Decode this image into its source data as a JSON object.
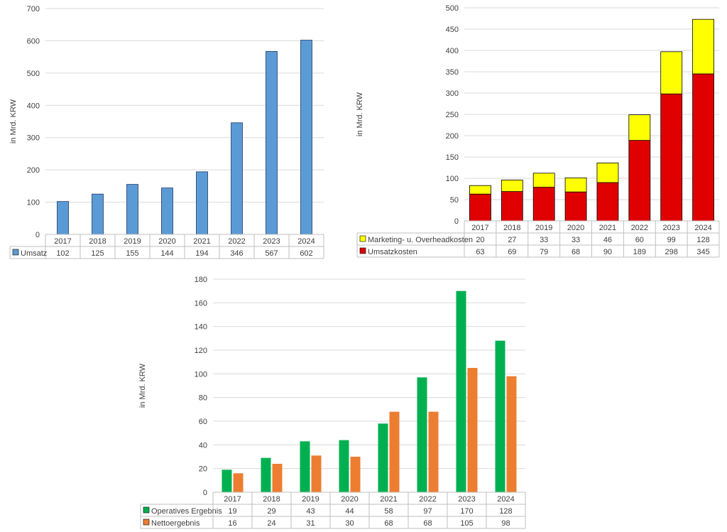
{
  "chart_data": [
    {
      "type": "bar",
      "categories": [
        "2017",
        "2018",
        "2019",
        "2020",
        "2021",
        "2022",
        "2023",
        "2024"
      ],
      "series": [
        {
          "name": "Umsatz",
          "values": [
            102,
            125,
            155,
            144,
            194,
            346,
            567,
            602
          ],
          "color": "#5b9bd5"
        }
      ],
      "ylabel": "in Mrd. KRW",
      "ylim": [
        0,
        700
      ],
      "yticks": [
        0,
        100,
        200,
        300,
        400,
        500,
        600,
        700
      ],
      "grid": true,
      "legend": "data table"
    },
    {
      "type": "bar",
      "stacked": true,
      "categories": [
        "2017",
        "2018",
        "2019",
        "2020",
        "2021",
        "2022",
        "2023",
        "2024"
      ],
      "series": [
        {
          "name": "Umsatzkosten",
          "values": [
            63,
            69,
            79,
            68,
            90,
            189,
            298,
            345
          ],
          "color": "#e00000"
        },
        {
          "name": "Marketing- u. Overheadkosten",
          "values": [
            20,
            27,
            33,
            33,
            46,
            60,
            99,
            128
          ],
          "color": "#ffff00"
        }
      ],
      "ylabel": "in Mrd. KRW",
      "ylim": [
        0,
        500
      ],
      "yticks": [
        0,
        50,
        100,
        150,
        200,
        250,
        300,
        350,
        400,
        450,
        500
      ],
      "grid": true,
      "legend": "data table"
    },
    {
      "type": "bar",
      "categories": [
        "2017",
        "2018",
        "2019",
        "2020",
        "2021",
        "2022",
        "2023",
        "2024"
      ],
      "series": [
        {
          "name": "Operatives Ergebnis",
          "values": [
            19,
            29,
            43,
            44,
            58,
            97,
            170,
            128
          ],
          "color": "#00b050"
        },
        {
          "name": "Nettoergebnis",
          "values": [
            16,
            24,
            31,
            30,
            68,
            68,
            105,
            98
          ],
          "color": "#ed7d31"
        }
      ],
      "ylabel": "in Mrd. KRW",
      "ylim": [
        0,
        180
      ],
      "yticks": [
        0,
        20,
        40,
        60,
        80,
        100,
        120,
        140,
        160,
        180
      ],
      "grid": true,
      "legend": "data table"
    }
  ]
}
